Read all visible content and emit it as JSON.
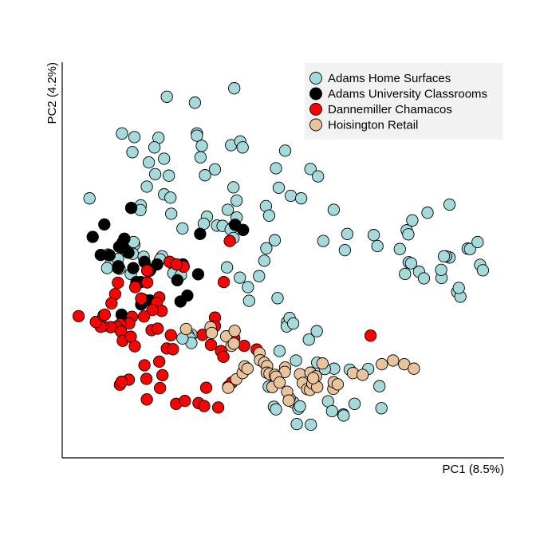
{
  "chart_data": {
    "type": "scatter",
    "xlabel": "PC1 (8.5%)",
    "ylabel": "PC2 (4.2%)",
    "xlim": [
      0,
      100
    ],
    "ylim": [
      0,
      100
    ],
    "grid": false,
    "legend_position": "top-right",
    "series": [
      {
        "name": "Adams Home Surfaces",
        "color": "#a6dada",
        "points": [
          [
            26.1,
            94.5
          ],
          [
            33.1,
            92.9
          ],
          [
            42.9,
            96.8
          ],
          [
            14.9,
            84.5
          ],
          [
            18.0,
            83.5
          ],
          [
            24.0,
            83.3
          ],
          [
            33.6,
            84.5
          ],
          [
            33.6,
            83.9
          ],
          [
            23.0,
            80.7
          ],
          [
            17.5,
            79.4
          ],
          [
            25.4,
            77.6
          ],
          [
            21.6,
            76.6
          ],
          [
            34.8,
            81.1
          ],
          [
            34.5,
            78.0
          ],
          [
            42.1,
            81.3
          ],
          [
            44.4,
            82.3
          ],
          [
            45.0,
            80.7
          ],
          [
            55.6,
            79.8
          ],
          [
            53.3,
            75.0
          ],
          [
            61.9,
            74.8
          ],
          [
            63.8,
            72.8
          ],
          [
            54.0,
            69.7
          ],
          [
            57.0,
            67.5
          ],
          [
            42.7,
            69.8
          ],
          [
            38.1,
            74.7
          ],
          [
            35.6,
            73.1
          ],
          [
            23.2,
            73.4
          ],
          [
            26.6,
            73.0
          ],
          [
            21.1,
            70.0
          ],
          [
            25.4,
            67.9
          ],
          [
            27.0,
            67.0
          ],
          [
            19.6,
            64.9
          ],
          [
            19.5,
            63.6
          ],
          [
            6.8,
            66.8
          ],
          [
            43.5,
            66.2
          ],
          [
            41.3,
            63.7
          ],
          [
            27.2,
            62.6
          ],
          [
            30.0,
            58.6
          ],
          [
            36.1,
            61.8
          ],
          [
            35.3,
            59.9
          ],
          [
            38.6,
            59.4
          ],
          [
            40.0,
            59.3
          ],
          [
            42.7,
            59.1
          ],
          [
            53.0,
            55.4
          ],
          [
            50.8,
            64.7
          ],
          [
            43.5,
            61.6
          ],
          [
            42.0,
            58.3
          ],
          [
            59.6,
            66.8
          ],
          [
            67.7,
            63.7
          ],
          [
            51.6,
            62.1
          ],
          [
            65.1,
            55.2
          ],
          [
            42.7,
            56.0
          ],
          [
            50.9,
            53.2
          ],
          [
            41.1,
            48.0
          ],
          [
            44.3,
            45.2
          ],
          [
            49.1,
            45.6
          ],
          [
            50.4,
            49.8
          ],
          [
            46.3,
            42.6
          ],
          [
            46.6,
            38.9
          ],
          [
            53.7,
            39.6
          ],
          [
            71.1,
            57.1
          ],
          [
            70.5,
            52.7
          ],
          [
            77.7,
            56.8
          ],
          [
            78.6,
            53.8
          ],
          [
            85.9,
            58.1
          ],
          [
            86.3,
            57.0
          ],
          [
            84.2,
            53.0
          ],
          [
            87.3,
            60.8
          ],
          [
            91.1,
            62.9
          ],
          [
            96.6,
            65.1
          ],
          [
            86.4,
            49.4
          ],
          [
            87.0,
            49.1
          ],
          [
            85.5,
            46.2
          ],
          [
            89.0,
            46.8
          ],
          [
            90.2,
            45.0
          ],
          [
            94.6,
            45.1
          ],
          [
            94.5,
            47.3
          ],
          [
            96.6,
            50.7
          ],
          [
            101.1,
            53.1
          ],
          [
            101.7,
            53.0
          ],
          [
            103.6,
            54.9
          ],
          [
            104.2,
            48.7
          ],
          [
            104.9,
            47.2
          ],
          [
            98.5,
            41.3
          ],
          [
            99.3,
            40.0
          ],
          [
            98.9,
            42.4
          ],
          [
            95.7,
            51.0
          ],
          [
            95.2,
            51.0
          ],
          [
            11.4,
            51.5
          ],
          [
            12.0,
            48.8
          ],
          [
            11.2,
            47.8
          ],
          [
            13.9,
            50.3
          ],
          [
            17.2,
            53.4
          ],
          [
            18.0,
            54.2
          ],
          [
            17.8,
            54.9
          ],
          [
            17.6,
            51.7
          ],
          [
            20.3,
            50.9
          ],
          [
            24.9,
            51.0
          ],
          [
            24.4,
            50.2
          ],
          [
            27.5,
            49.0
          ],
          [
            14.3,
            47.6
          ],
          [
            17.1,
            46.2
          ],
          [
            27.7,
            46.4
          ],
          [
            29.6,
            45.9
          ],
          [
            32.3,
            29.6
          ],
          [
            31.4,
            29.6
          ],
          [
            31.8,
            28.7
          ],
          [
            32.2,
            27.4
          ],
          [
            30.0,
            28.6
          ],
          [
            51.5,
            15.5
          ],
          [
            52.8,
            10.0
          ],
          [
            53.2,
            16.5
          ],
          [
            53.3,
            9.3
          ],
          [
            57.7,
            11.2
          ],
          [
            58.5,
            5.3
          ],
          [
            62.0,
            5.1
          ],
          [
            58.9,
            9.5
          ],
          [
            61.9,
            16.1
          ],
          [
            66.3,
            11.5
          ],
          [
            63.6,
            22.0
          ],
          [
            67.8,
            20.4
          ],
          [
            65.5,
            20.3
          ],
          [
            71.7,
            20.1
          ],
          [
            76.3,
            20.3
          ],
          [
            67.3,
            8.8
          ],
          [
            70.1,
            7.9
          ],
          [
            70.2,
            7.6
          ],
          [
            72.9,
            10.8
          ],
          [
            79.1,
            15.6
          ],
          [
            79.6,
            9.6
          ],
          [
            58.3,
            22.6
          ],
          [
            54.2,
            25.2
          ],
          [
            56.1,
            33.1
          ],
          [
            56.0,
            31.9
          ],
          [
            56.7,
            34.2
          ],
          [
            57.6,
            32.7
          ],
          [
            61.5,
            28.3
          ],
          [
            63.5,
            30.6
          ],
          [
            59.3,
            10.1
          ]
        ]
      },
      {
        "name": "Adams University Classrooms",
        "color": "#000000",
        "points": [
          [
            34.4,
            57.1
          ],
          [
            43.1,
            59.6
          ],
          [
            45.1,
            58.2
          ],
          [
            17.2,
            64.2
          ],
          [
            10.5,
            59.7
          ],
          [
            7.6,
            56.3
          ],
          [
            9.6,
            51.4
          ],
          [
            11.8,
            51.3
          ],
          [
            14.2,
            53.6
          ],
          [
            15.5,
            55.8
          ],
          [
            15.0,
            54.7
          ],
          [
            15.1,
            53.3
          ],
          [
            16.5,
            52.0
          ],
          [
            17.7,
            47.8
          ],
          [
            20.5,
            49.5
          ],
          [
            21.8,
            47.1
          ],
          [
            14.0,
            48.3
          ],
          [
            13.9,
            47.8
          ],
          [
            18.5,
            44.0
          ],
          [
            19.6,
            44.0
          ],
          [
            22.0,
            47.4
          ],
          [
            23.7,
            48.8
          ],
          [
            28.7,
            44.5
          ],
          [
            33.9,
            46.1
          ],
          [
            30.1,
            48.8
          ],
          [
            14.8,
            35.1
          ],
          [
            19.7,
            37.9
          ],
          [
            21.8,
            39.0
          ],
          [
            20.1,
            39.3
          ],
          [
            29.5,
            38.7
          ],
          [
            31.2,
            40.3
          ]
        ]
      },
      {
        "name": "Dannemiller Chamacos",
        "color": "#ff0000",
        "points": [
          [
            41.8,
            55.2
          ],
          [
            40.3,
            44.0
          ],
          [
            21.2,
            47.1
          ],
          [
            21.2,
            43.9
          ],
          [
            18.2,
            42.6
          ],
          [
            13.9,
            43.8
          ],
          [
            13.2,
            40.7
          ],
          [
            12.3,
            38.2
          ],
          [
            19.7,
            39.5
          ],
          [
            24.2,
            39.8
          ],
          [
            23.6,
            38.3
          ],
          [
            24.8,
            36.1
          ],
          [
            22.5,
            36.4
          ],
          [
            20.4,
            34.6
          ],
          [
            17.4,
            34.5
          ],
          [
            16.7,
            32.7
          ],
          [
            14.5,
            32.5
          ],
          [
            13.6,
            31.8
          ],
          [
            12.1,
            31.7
          ],
          [
            10.1,
            32.0
          ],
          [
            9.6,
            31.8
          ],
          [
            8.4,
            33.1
          ],
          [
            10.3,
            34.9
          ],
          [
            4.1,
            34.7
          ],
          [
            10.6,
            35.1
          ],
          [
            14.7,
            30.5
          ],
          [
            15.1,
            28.0
          ],
          [
            17.1,
            29.1
          ],
          [
            18.1,
            26.5
          ],
          [
            22.3,
            30.9
          ],
          [
            23.8,
            31.3
          ],
          [
            27.1,
            29.5
          ],
          [
            26.1,
            25.9
          ],
          [
            27.6,
            25.7
          ],
          [
            24.2,
            22.3
          ],
          [
            20.5,
            21.3
          ],
          [
            25.0,
            18.6
          ],
          [
            21.0,
            17.6
          ],
          [
            16.6,
            17.4
          ],
          [
            14.4,
            16.0
          ],
          [
            14.8,
            16.8
          ],
          [
            38.1,
            34.3
          ],
          [
            38.1,
            32.0
          ],
          [
            35.0,
            29.6
          ],
          [
            37.1,
            26.9
          ],
          [
            39.6,
            25.2
          ],
          [
            40.2,
            23.6
          ],
          [
            45.4,
            26.6
          ],
          [
            48.5,
            25.6
          ],
          [
            35.9,
            15.2
          ],
          [
            24.4,
            15.1
          ],
          [
            28.4,
            10.8
          ],
          [
            30.6,
            11.6
          ],
          [
            34.0,
            11.0
          ],
          [
            35.4,
            10.2
          ],
          [
            38.9,
            9.8
          ],
          [
            41.4,
            15.5
          ],
          [
            42.3,
            16.6
          ],
          [
            21.1,
            12.0
          ],
          [
            42.9,
            28.7
          ],
          [
            30.3,
            48.2
          ],
          [
            26.8,
            49.5
          ],
          [
            28.5,
            48.8
          ],
          [
            76.9,
            29.4
          ]
        ]
      },
      {
        "name": "Hoisington Retail",
        "color": "#e9c39c",
        "points": [
          [
            30.9,
            31.2
          ],
          [
            40.9,
            29.2
          ],
          [
            42.2,
            26.6
          ],
          [
            42.8,
            27.2
          ],
          [
            43.0,
            30.7
          ],
          [
            37.0,
            31.7
          ],
          [
            37.3,
            30.1
          ],
          [
            41.4,
            15.2
          ],
          [
            43.4,
            17.5
          ],
          [
            45.0,
            19.2
          ],
          [
            45.5,
            21.0
          ],
          [
            46.2,
            20.4
          ],
          [
            49.2,
            24.6
          ],
          [
            49.3,
            22.7
          ],
          [
            50.4,
            22.0
          ],
          [
            51.1,
            21.1
          ],
          [
            52.4,
            15.4
          ],
          [
            55.6,
            20.7
          ],
          [
            55.5,
            19.5
          ],
          [
            56.7,
            12.3
          ],
          [
            56.1,
            14.1
          ],
          [
            56.5,
            11.7
          ],
          [
            59.3,
            18.9
          ],
          [
            61.9,
            19.3
          ],
          [
            64.9,
            21.8
          ],
          [
            67.6,
            14.9
          ],
          [
            72.5,
            19.2
          ],
          [
            51.0,
            19.3
          ],
          [
            51.7,
            19.0
          ],
          [
            53.0,
            18.7
          ],
          [
            53.3,
            18.2
          ],
          [
            54.2,
            16.6
          ],
          [
            60.0,
            16.5
          ],
          [
            61.1,
            14.8
          ],
          [
            61.8,
            14.6
          ],
          [
            62.4,
            16.3
          ],
          [
            63.3,
            18.3
          ],
          [
            63.6,
            15.4
          ],
          [
            62.6,
            17.8
          ],
          [
            67.7,
            16.7
          ],
          [
            68.7,
            16.1
          ],
          [
            74.9,
            18.7
          ],
          [
            79.7,
            21.6
          ],
          [
            82.5,
            22.6
          ],
          [
            85.3,
            21.6
          ],
          [
            87.7,
            20.4
          ]
        ]
      }
    ]
  }
}
